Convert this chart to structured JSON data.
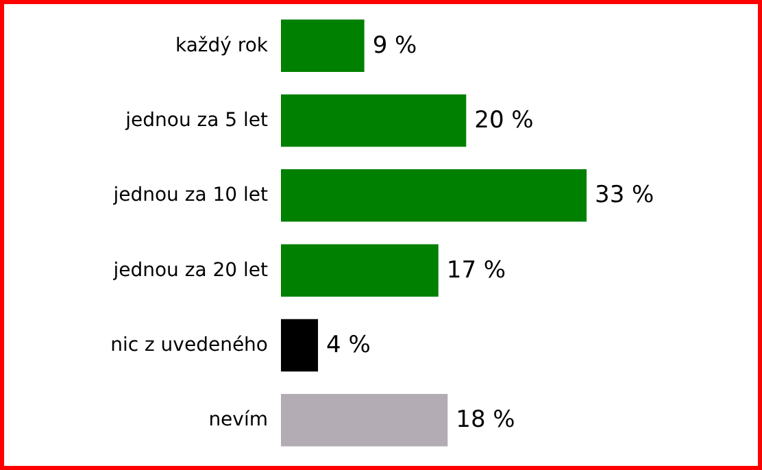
{
  "chart_data": {
    "type": "bar",
    "orientation": "horizontal",
    "categories": [
      "každý rok",
      "jednou za 5 let",
      "jednou za 10 let",
      "jednou za 20 let",
      "nic z uvedeného",
      "nevím"
    ],
    "values": [
      9,
      20,
      33,
      17,
      4,
      18
    ],
    "colors": [
      "#008000",
      "#008000",
      "#008000",
      "#008000",
      "#000000",
      "#b4acb4"
    ],
    "value_labels": [
      "9 %",
      "20 %",
      "33 %",
      "17 %",
      "4 %",
      "18 %"
    ]
  }
}
